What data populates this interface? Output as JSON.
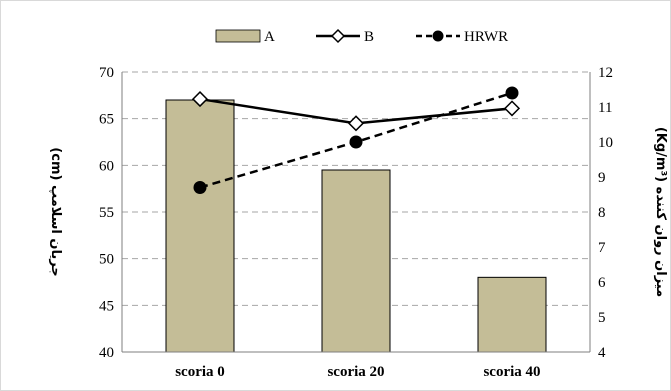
{
  "chart_data": {
    "type": "bar",
    "categories": [
      "scoria 0",
      "scoria 20",
      "scoria 40"
    ],
    "series": [
      {
        "name": "A",
        "type": "bar",
        "axis": "left",
        "values": [
          67,
          59.5,
          48
        ],
        "color": "#c4bd97"
      },
      {
        "name": "B",
        "type": "line",
        "axis": "left",
        "values": [
          67.1,
          64.5,
          66.1
        ],
        "color": "#000000",
        "marker": "diamond-open",
        "line_style": "solid"
      },
      {
        "name": "HRWR",
        "type": "line",
        "axis": "right",
        "values": [
          8.7,
          10.0,
          11.4
        ],
        "color": "#000000",
        "marker": "circle-filled",
        "line_style": "dashed"
      }
    ],
    "ylabel_left": "جریان اسلامپ (cm)",
    "ylabel_right": "میزان روان کننده (Kg/m³)",
    "ylim_left": [
      40,
      70
    ],
    "ylim_right": [
      4,
      12
    ],
    "yticks_left": [
      "40",
      "45",
      "50",
      "55",
      "60",
      "65",
      "70"
    ],
    "yticks_right": [
      "4",
      "5",
      "6",
      "7",
      "8",
      "9",
      "10",
      "11",
      "12"
    ],
    "grid": "horizontal dashed",
    "legend_position": "top"
  }
}
